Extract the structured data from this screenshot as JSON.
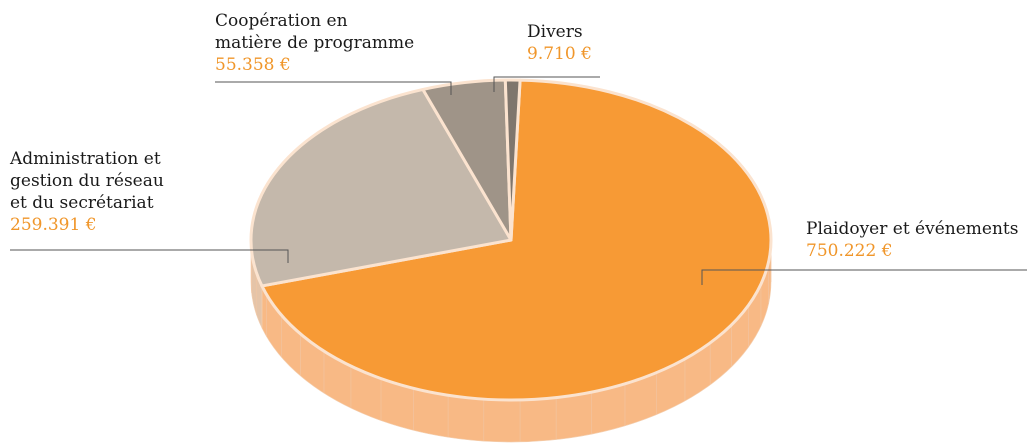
{
  "chart_data": {
    "type": "pie",
    "title": "",
    "slices": [
      {
        "label": "Plaidoyer et événements",
        "value": 750222,
        "value_label": "750.222 €",
        "color": "#f79a35",
        "side_color": "#f8b985"
      },
      {
        "label": "Administration et\ngestion du réseau\net du secrétariat",
        "value": 259391,
        "value_label": "259.391 €",
        "color": "#c4b8ab",
        "side_color": "#e5c4a8"
      },
      {
        "label": "Coopération en\nmatière de programme",
        "value": 55358,
        "value_label": "55.358 €",
        "color": "#9f9488",
        "side_color": "#d9b79c"
      },
      {
        "label": "Divers",
        "value": 9710,
        "value_label": "9.710 €",
        "color": "#7f766d",
        "side_color": "#d1ae93"
      }
    ],
    "legend": "none",
    "style": "3d-tilted"
  }
}
